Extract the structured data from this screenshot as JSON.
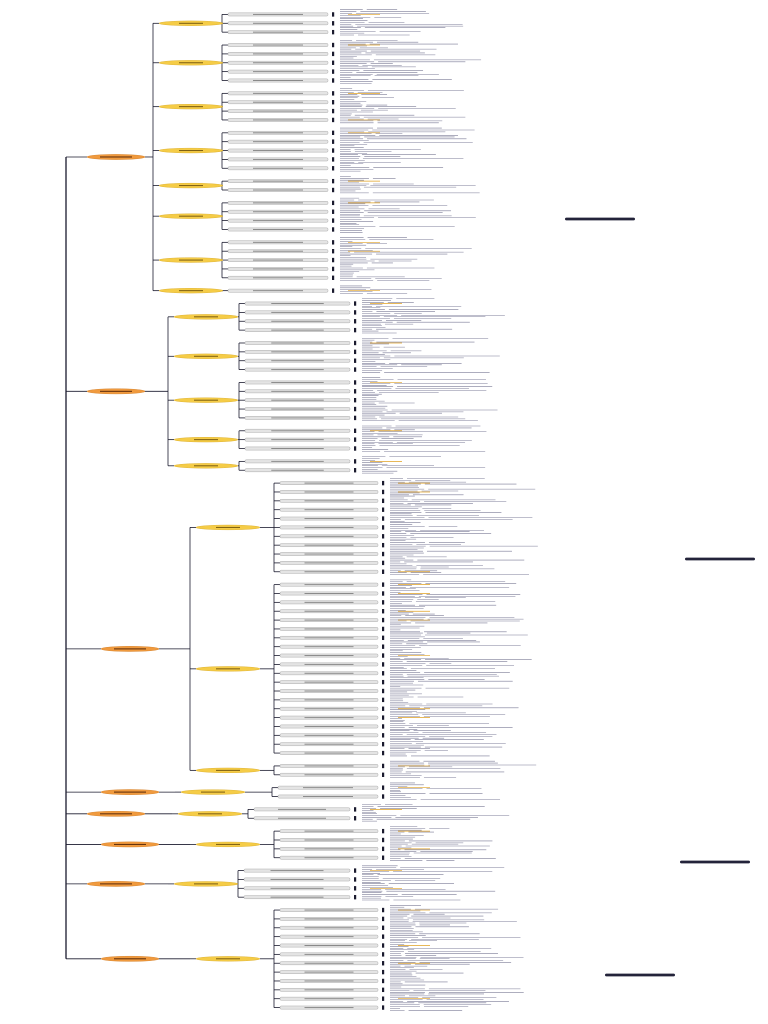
{
  "diagram": {
    "type": "horizontal-tree",
    "colors": {
      "line": "#1a1a2e",
      "sections": "#f09a3e",
      "groups": "#f5cc47",
      "leaf_fill": "#e4e4e4",
      "leaf_stroke": "#9a9a9a",
      "detail_text": "#7d7d98",
      "accent_text": "#e0a020",
      "dark_pill": "#23233a"
    },
    "root": {
      "sections": [
        {
          "groups": [
            {
              "leaves": 3
            },
            {
              "leaves": 5
            },
            {
              "leaves": 4
            },
            {
              "leaves": 5
            },
            {
              "leaves": 2
            },
            {
              "leaves": 4
            },
            {
              "leaves": 5
            },
            {
              "leaves": 1
            }
          ]
        },
        {
          "groups": [
            {
              "leaves": 4
            },
            {
              "leaves": 4
            },
            {
              "leaves": 5
            },
            {
              "leaves": 3
            },
            {
              "leaves": 2
            }
          ]
        },
        {
          "groups": [
            {
              "leaves": 11
            },
            {
              "leaves": 20
            },
            {
              "leaves": 2
            }
          ]
        },
        {
          "groups": [
            {
              "leaves": 2
            }
          ]
        },
        {
          "groups": [
            {
              "leaves": 2
            }
          ]
        },
        {
          "groups": [
            {
              "leaves": 4
            }
          ]
        },
        {
          "groups": [
            {
              "leaves": 4
            }
          ]
        },
        {
          "groups": [
            {
              "leaves": 12
            }
          ]
        }
      ]
    }
  }
}
